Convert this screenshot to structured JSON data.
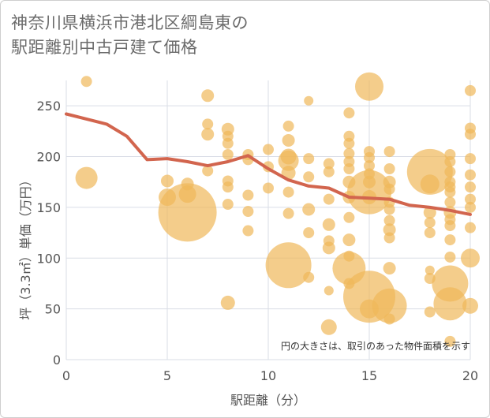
{
  "chart_data": {
    "type": "scatter",
    "title_lines": [
      "神奈川県横浜市港北区綱島東の",
      "駅距離別中古戸建て価格"
    ],
    "xlabel": "駅距離（分）",
    "ylabel": "坪（3.3㎡）単価（万円）",
    "note": "円の大きさは、取引のあった物件面積を示す",
    "xlim": [
      0,
      20
    ],
    "ylim": [
      0,
      275
    ],
    "xticks": [
      0,
      5,
      10,
      15,
      20
    ],
    "yticks": [
      0,
      50,
      100,
      150,
      200,
      250
    ],
    "grid": true,
    "colors": {
      "bubble": "#f0b85a",
      "trend": "#d2654e",
      "grid": "#d9dde6"
    },
    "bubbles": [
      {
        "x": 1,
        "y": 274,
        "s": 7
      },
      {
        "x": 1,
        "y": 179,
        "s": 14
      },
      {
        "x": 5,
        "y": 176,
        "s": 8
      },
      {
        "x": 5,
        "y": 160,
        "s": 11
      },
      {
        "x": 6,
        "y": 145,
        "s": 37
      },
      {
        "x": 6,
        "y": 163,
        "s": 11
      },
      {
        "x": 6,
        "y": 173,
        "s": 8
      },
      {
        "x": 7,
        "y": 260,
        "s": 8
      },
      {
        "x": 7,
        "y": 232,
        "s": 7
      },
      {
        "x": 7,
        "y": 222,
        "s": 8
      },
      {
        "x": 7,
        "y": 186,
        "s": 7
      },
      {
        "x": 8,
        "y": 227,
        "s": 8
      },
      {
        "x": 8,
        "y": 220,
        "s": 7
      },
      {
        "x": 8,
        "y": 213,
        "s": 7
      },
      {
        "x": 8,
        "y": 202,
        "s": 7
      },
      {
        "x": 8,
        "y": 176,
        "s": 7
      },
      {
        "x": 8,
        "y": 170,
        "s": 7
      },
      {
        "x": 8,
        "y": 153,
        "s": 7
      },
      {
        "x": 8,
        "y": 56,
        "s": 9
      },
      {
        "x": 9,
        "y": 202,
        "s": 7
      },
      {
        "x": 9,
        "y": 197,
        "s": 7
      },
      {
        "x": 9,
        "y": 162,
        "s": 7
      },
      {
        "x": 9,
        "y": 146,
        "s": 7
      },
      {
        "x": 9,
        "y": 127,
        "s": 7
      },
      {
        "x": 10,
        "y": 207,
        "s": 7
      },
      {
        "x": 10,
        "y": 190,
        "s": 7
      },
      {
        "x": 10,
        "y": 169,
        "s": 7
      },
      {
        "x": 11,
        "y": 230,
        "s": 7
      },
      {
        "x": 11,
        "y": 216,
        "s": 8
      },
      {
        "x": 11,
        "y": 200,
        "s": 10
      },
      {
        "x": 11,
        "y": 196,
        "s": 13
      },
      {
        "x": 11,
        "y": 184,
        "s": 9
      },
      {
        "x": 11,
        "y": 165,
        "s": 7
      },
      {
        "x": 11,
        "y": 144,
        "s": 7
      },
      {
        "x": 11,
        "y": 93,
        "s": 29
      },
      {
        "x": 12,
        "y": 255,
        "s": 6
      },
      {
        "x": 12,
        "y": 198,
        "s": 7
      },
      {
        "x": 12,
        "y": 180,
        "s": 7
      },
      {
        "x": 12,
        "y": 148,
        "s": 8
      },
      {
        "x": 12,
        "y": 125,
        "s": 7
      },
      {
        "x": 12,
        "y": 81,
        "s": 7
      },
      {
        "x": 13,
        "y": 193,
        "s": 7
      },
      {
        "x": 13,
        "y": 185,
        "s": 7
      },
      {
        "x": 13,
        "y": 158,
        "s": 7
      },
      {
        "x": 13,
        "y": 133,
        "s": 8
      },
      {
        "x": 13,
        "y": 117,
        "s": 7
      },
      {
        "x": 13,
        "y": 110,
        "s": 8
      },
      {
        "x": 13,
        "y": 68,
        "s": 6
      },
      {
        "x": 13,
        "y": 32,
        "s": 10
      },
      {
        "x": 14,
        "y": 243,
        "s": 7
      },
      {
        "x": 14,
        "y": 220,
        "s": 7
      },
      {
        "x": 14,
        "y": 213,
        "s": 7
      },
      {
        "x": 14,
        "y": 203,
        "s": 7
      },
      {
        "x": 14,
        "y": 195,
        "s": 7
      },
      {
        "x": 14,
        "y": 188,
        "s": 7
      },
      {
        "x": 14,
        "y": 175,
        "s": 8
      },
      {
        "x": 14,
        "y": 160,
        "s": 8
      },
      {
        "x": 14,
        "y": 140,
        "s": 7
      },
      {
        "x": 14,
        "y": 118,
        "s": 8
      },
      {
        "x": 14,
        "y": 102,
        "s": 7
      },
      {
        "x": 14,
        "y": 90,
        "s": 21
      },
      {
        "x": 14,
        "y": 75,
        "s": 7
      },
      {
        "x": 15,
        "y": 269,
        "s": 18
      },
      {
        "x": 15,
        "y": 205,
        "s": 7
      },
      {
        "x": 15,
        "y": 199,
        "s": 7
      },
      {
        "x": 15,
        "y": 191,
        "s": 7
      },
      {
        "x": 15,
        "y": 183,
        "s": 7
      },
      {
        "x": 15,
        "y": 175,
        "s": 8
      },
      {
        "x": 15,
        "y": 165,
        "s": 28
      },
      {
        "x": 15,
        "y": 160,
        "s": 9
      },
      {
        "x": 15,
        "y": 62,
        "s": 33
      },
      {
        "x": 15,
        "y": 50,
        "s": 12
      },
      {
        "x": 16,
        "y": 205,
        "s": 7
      },
      {
        "x": 16,
        "y": 188,
        "s": 7
      },
      {
        "x": 16,
        "y": 175,
        "s": 8
      },
      {
        "x": 16,
        "y": 168,
        "s": 7
      },
      {
        "x": 16,
        "y": 155,
        "s": 7
      },
      {
        "x": 16,
        "y": 148,
        "s": 7
      },
      {
        "x": 16,
        "y": 137,
        "s": 7
      },
      {
        "x": 16,
        "y": 128,
        "s": 8
      },
      {
        "x": 16,
        "y": 120,
        "s": 7
      },
      {
        "x": 16,
        "y": 90,
        "s": 8
      },
      {
        "x": 16,
        "y": 53,
        "s": 22
      },
      {
        "x": 16,
        "y": 40,
        "s": 7
      },
      {
        "x": 18,
        "y": 185,
        "s": 29
      },
      {
        "x": 18,
        "y": 173,
        "s": 12
      },
      {
        "x": 18,
        "y": 145,
        "s": 8
      },
      {
        "x": 18,
        "y": 135,
        "s": 7
      },
      {
        "x": 18,
        "y": 125,
        "s": 7
      },
      {
        "x": 18,
        "y": 88,
        "s": 6
      },
      {
        "x": 18,
        "y": 80,
        "s": 7
      },
      {
        "x": 18,
        "y": 47,
        "s": 7
      },
      {
        "x": 19,
        "y": 202,
        "s": 7
      },
      {
        "x": 19,
        "y": 195,
        "s": 7
      },
      {
        "x": 19,
        "y": 185,
        "s": 7
      },
      {
        "x": 19,
        "y": 175,
        "s": 7
      },
      {
        "x": 19,
        "y": 170,
        "s": 7
      },
      {
        "x": 19,
        "y": 165,
        "s": 7
      },
      {
        "x": 19,
        "y": 155,
        "s": 7
      },
      {
        "x": 19,
        "y": 145,
        "s": 8
      },
      {
        "x": 19,
        "y": 138,
        "s": 7
      },
      {
        "x": 19,
        "y": 132,
        "s": 7
      },
      {
        "x": 19,
        "y": 118,
        "s": 7
      },
      {
        "x": 19,
        "y": 101,
        "s": 7
      },
      {
        "x": 19,
        "y": 75,
        "s": 23
      },
      {
        "x": 19,
        "y": 55,
        "s": 21
      },
      {
        "x": 19,
        "y": 18,
        "s": 7
      },
      {
        "x": 20,
        "y": 265,
        "s": 7
      },
      {
        "x": 20,
        "y": 228,
        "s": 7
      },
      {
        "x": 20,
        "y": 222,
        "s": 7
      },
      {
        "x": 20,
        "y": 198,
        "s": 7
      },
      {
        "x": 20,
        "y": 182,
        "s": 7
      },
      {
        "x": 20,
        "y": 170,
        "s": 7
      },
      {
        "x": 20,
        "y": 158,
        "s": 7
      },
      {
        "x": 20,
        "y": 150,
        "s": 7
      },
      {
        "x": 20,
        "y": 130,
        "s": 7
      },
      {
        "x": 20,
        "y": 100,
        "s": 12
      },
      {
        "x": 20,
        "y": 53,
        "s": 10
      }
    ],
    "trend": {
      "x": [
        0,
        1,
        2,
        3,
        4,
        5,
        6,
        7,
        8,
        9,
        10,
        11,
        12,
        13,
        14,
        15,
        16,
        17,
        18,
        19,
        20
      ],
      "y": [
        242,
        237,
        232,
        220,
        197,
        198,
        195,
        191,
        195,
        201,
        188,
        177,
        171,
        169,
        160,
        159,
        158,
        152,
        150,
        147,
        143
      ]
    }
  }
}
